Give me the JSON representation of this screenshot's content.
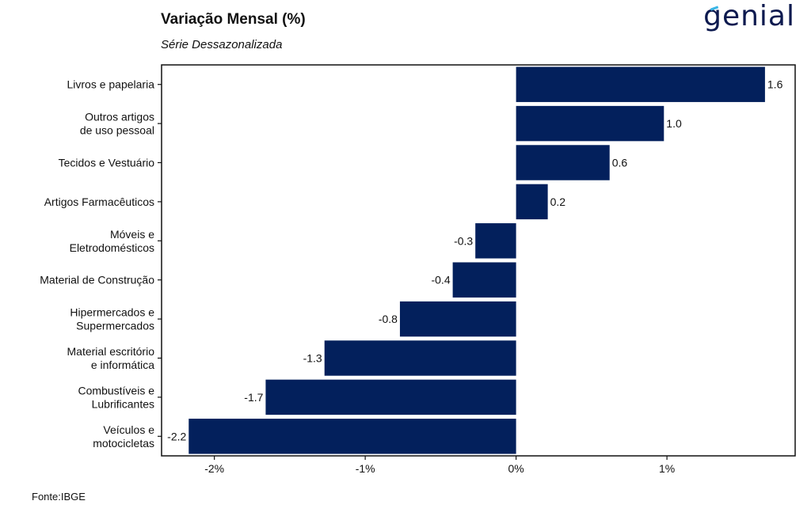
{
  "logo": {
    "text": "genial",
    "accent_color": "#3ab6e6",
    "text_color": "#0d1a4f"
  },
  "source": "Fonte:IBGE",
  "chart_data": {
    "type": "bar",
    "orientation": "horizontal",
    "title": "Variação Mensal (%)",
    "subtitle": "Série Dessazonalizada",
    "categories": [
      [
        "Livros e papelaria"
      ],
      [
        "Outros artigos",
        "de uso pessoal"
      ],
      [
        "Tecidos e Vestuário"
      ],
      [
        "Artigos Farmacêuticos"
      ],
      [
        "Móveis e",
        "Eletrodomésticos"
      ],
      [
        "Material de Construção"
      ],
      [
        "Hipermercados e",
        "Supermercados"
      ],
      [
        "Material escritório",
        "e informática"
      ],
      [
        "Combustíveis e",
        "Lubrificantes"
      ],
      [
        "Veículos e",
        "motocicletas"
      ]
    ],
    "values": [
      1.65,
      0.98,
      0.62,
      0.21,
      -0.27,
      -0.42,
      -0.77,
      -1.27,
      -1.66,
      -2.17
    ],
    "data_labels": [
      "1.6",
      "1.0",
      "0.6",
      "0.2",
      "-0.3",
      "-0.4",
      "-0.8",
      "-1.3",
      "-1.7",
      "-2.2"
    ],
    "xlim": [
      -2.35,
      1.85
    ],
    "x_ticks": [
      -2,
      -1,
      0,
      1
    ],
    "x_tick_labels": [
      "-2%",
      "-1%",
      "0%",
      "1%"
    ],
    "bar_color": "#03205c",
    "grid": false,
    "legend": "none"
  }
}
